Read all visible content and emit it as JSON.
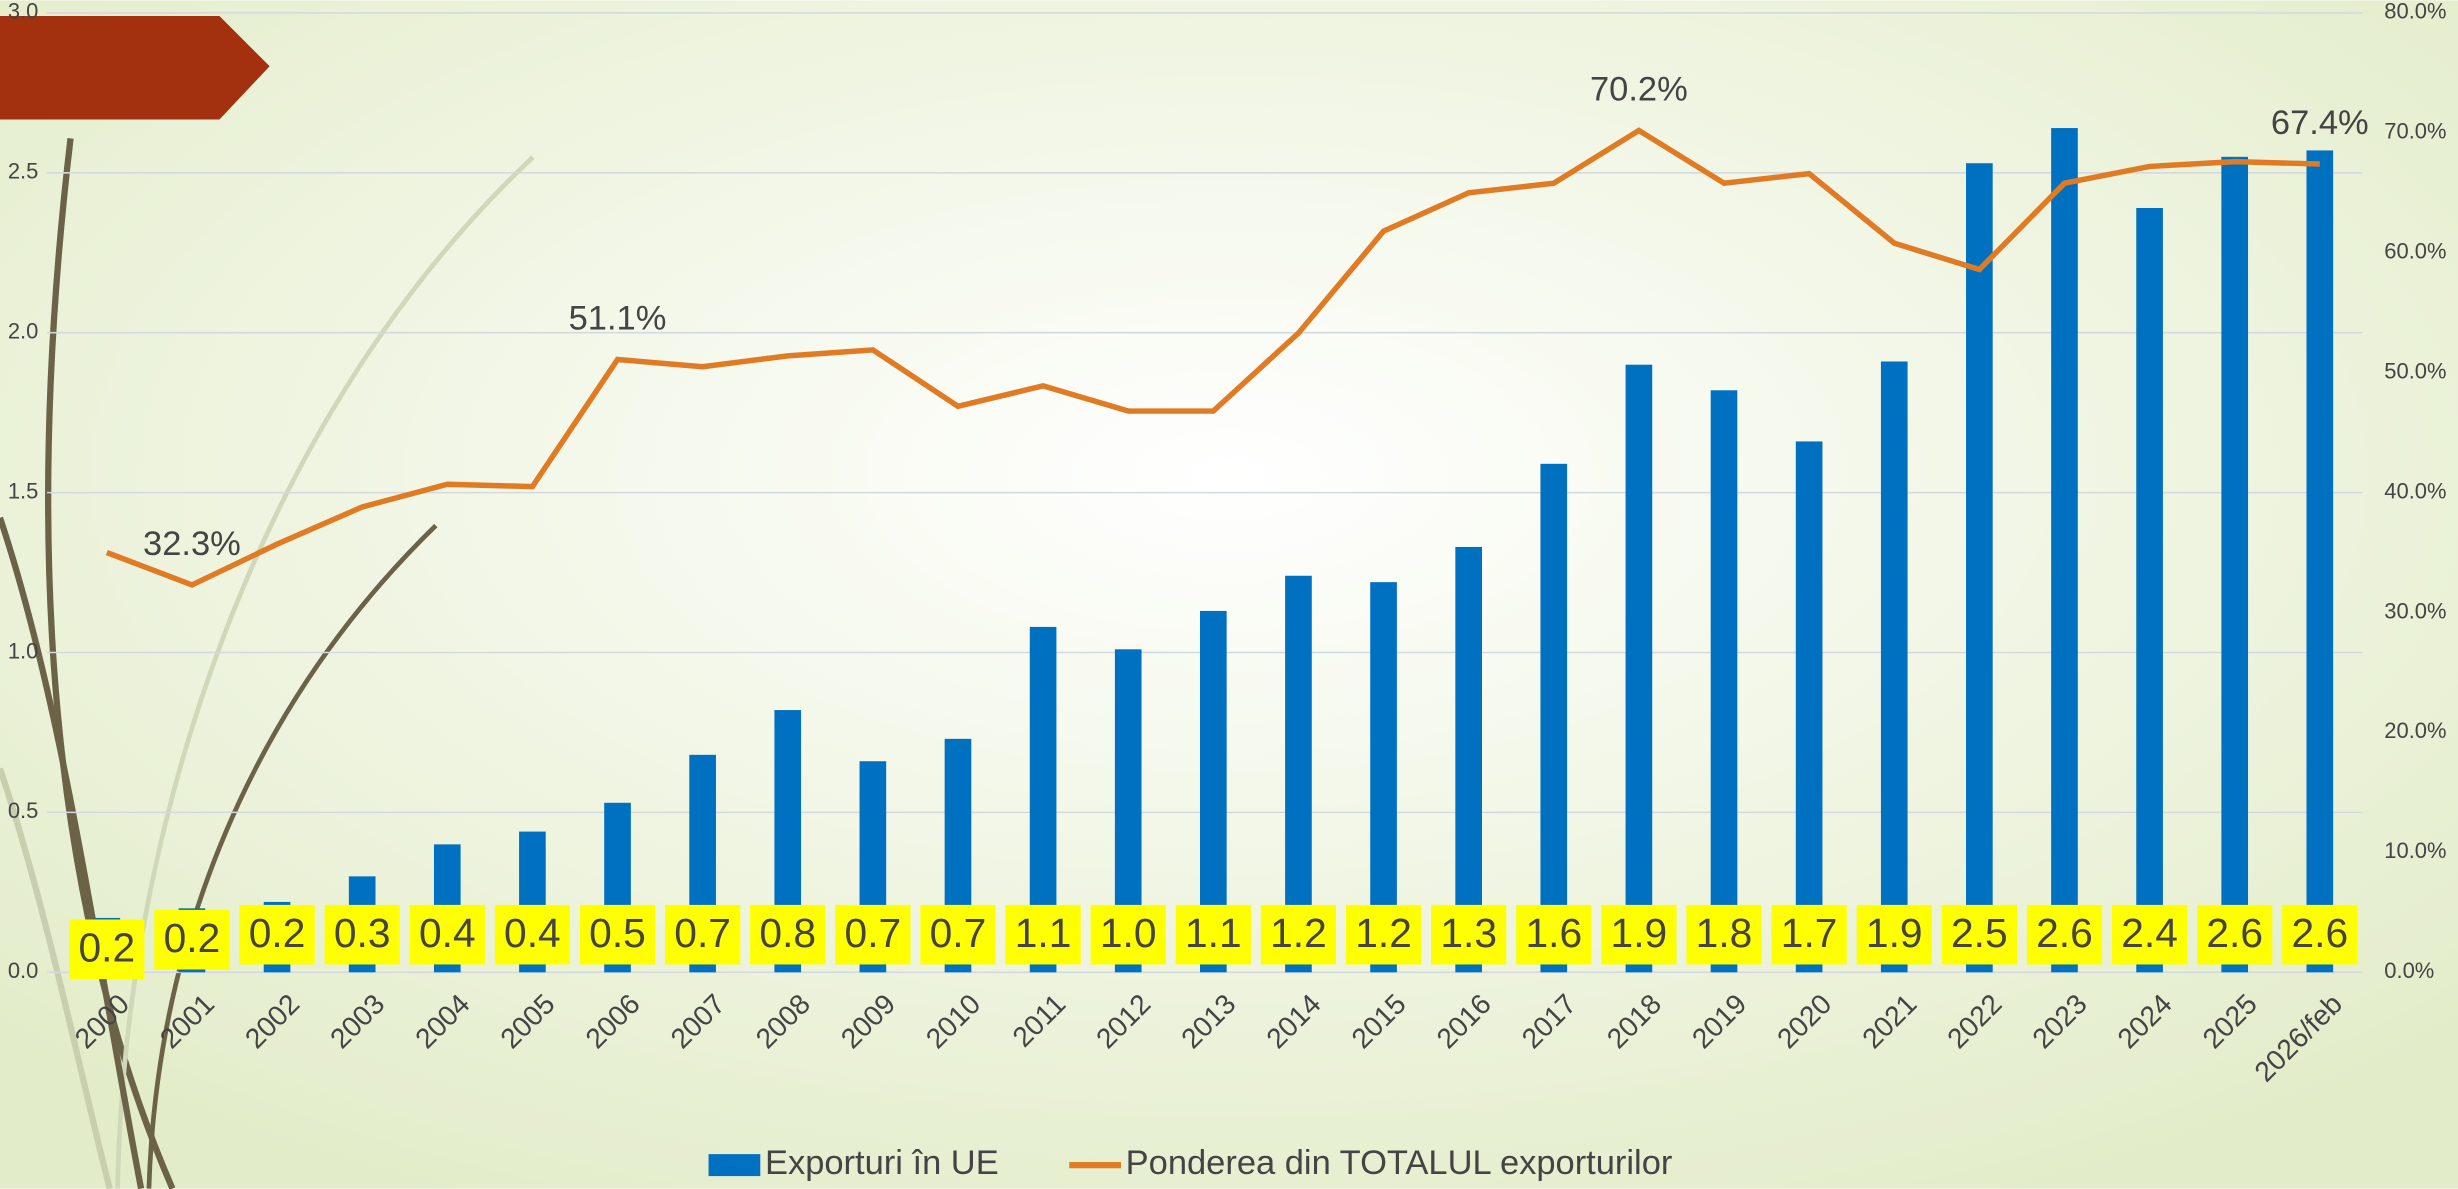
{
  "chart_data": {
    "type": "bar+line",
    "categories": [
      "2000",
      "2001",
      "2002",
      "2003",
      "2004",
      "2005",
      "2006",
      "2007",
      "2008",
      "2009",
      "2010",
      "2011",
      "2012",
      "2013",
      "2014",
      "2015",
      "2016",
      "2017",
      "2018",
      "2019",
      "2020",
      "2021",
      "2022",
      "2023",
      "2024",
      "2025",
      "2026/feb"
    ],
    "series": [
      {
        "name": "Exporturi în UE",
        "type": "bar",
        "color": "#0070c0",
        "values": [
          0.17,
          0.2,
          0.22,
          0.3,
          0.4,
          0.44,
          0.53,
          0.68,
          0.82,
          0.66,
          0.73,
          1.08,
          1.01,
          1.13,
          1.24,
          1.22,
          1.33,
          1.59,
          1.9,
          1.82,
          1.66,
          1.91,
          2.53,
          2.64,
          2.39,
          2.55,
          2.57
        ],
        "value_labels": [
          "0.2",
          "0.2",
          "0.2",
          "0.3",
          "0.4",
          "0.4",
          "0.5",
          "0.7",
          "0.8",
          "0.7",
          "0.7",
          "1.1",
          "1.0",
          "1.1",
          "1.2",
          "1.2",
          "1.3",
          "1.6",
          "1.9",
          "1.8",
          "1.7",
          "1.9",
          "2.5",
          "2.6",
          "2.4",
          "2.6",
          "2.6"
        ]
      },
      {
        "name": "Ponderea din TOTALUL exporturilor",
        "type": "line",
        "axis": "y2",
        "color": "#e07b24",
        "values": [
          35.0,
          32.3,
          35.7,
          38.8,
          40.7,
          40.5,
          51.1,
          50.5,
          51.4,
          51.9,
          47.2,
          48.9,
          46.8,
          46.8,
          53.3,
          61.8,
          65.0,
          65.8,
          70.2,
          65.8,
          66.6,
          60.8,
          58.6,
          65.8,
          67.2,
          67.6,
          67.4
        ],
        "value_labels": [
          null,
          "32.3%",
          null,
          null,
          null,
          null,
          "51.1%",
          null,
          null,
          null,
          null,
          null,
          null,
          null,
          null,
          null,
          null,
          null,
          "70.2%",
          null,
          null,
          null,
          null,
          null,
          null,
          null,
          "67.4%"
        ]
      }
    ],
    "ylim": [
      0,
      3
    ],
    "yticks": [
      {
        "value": 0,
        "label": "0.0"
      },
      {
        "value": 0.5,
        "label": "0.5"
      },
      {
        "value": 1,
        "label": "1.0"
      },
      {
        "value": 1.5,
        "label": "1.5"
      },
      {
        "value": 2,
        "label": "2.0"
      },
      {
        "value": 2.5,
        "label": "2.5"
      },
      {
        "value": 3,
        "label": "3.0"
      }
    ],
    "y2lim": [
      0,
      80
    ],
    "y2ticks": [
      {
        "value": 0,
        "label": "0.0%"
      },
      {
        "value": 10,
        "label": "10.0%"
      },
      {
        "value": 20,
        "label": "20.0%"
      },
      {
        "value": 30,
        "label": "30.0%"
      },
      {
        "value": 40,
        "label": "40.0%"
      },
      {
        "value": 50,
        "label": "50.0%"
      },
      {
        "value": 60,
        "label": "60.0%"
      },
      {
        "value": 70,
        "label": "70.0%"
      },
      {
        "value": 80,
        "label": "80.0%"
      }
    ],
    "grid": true,
    "legend": "bottom"
  }
}
